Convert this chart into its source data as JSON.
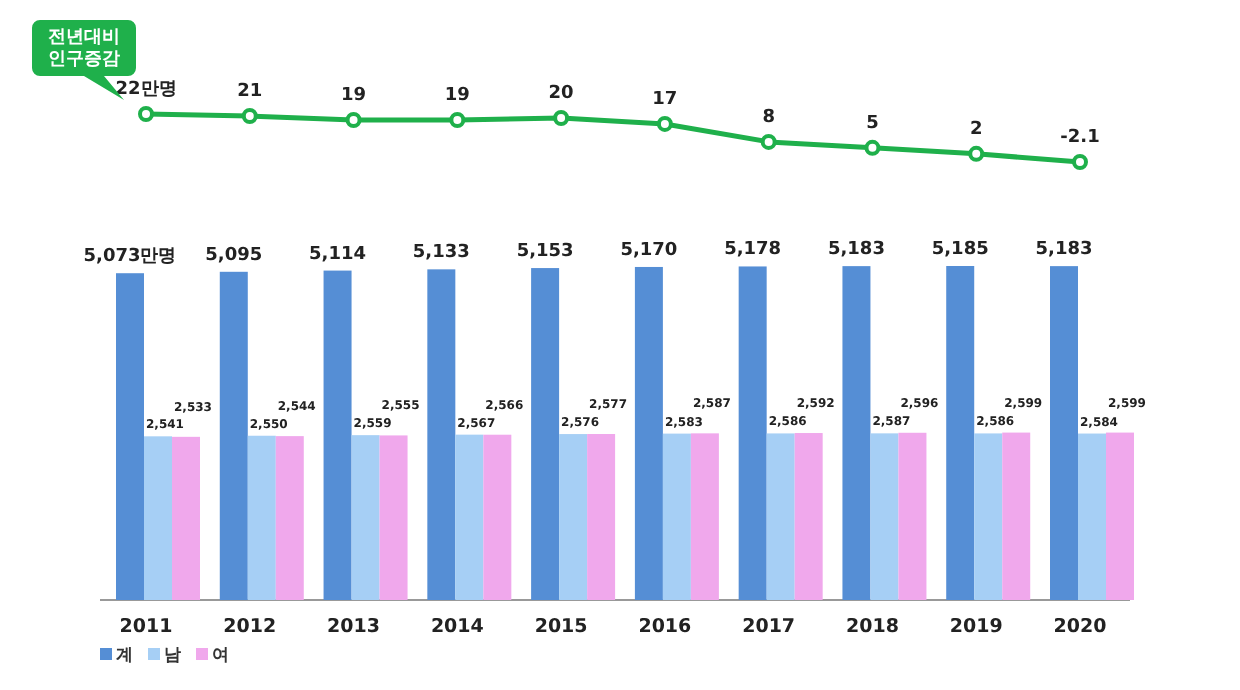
{
  "chart_data": [
    {
      "type": "line",
      "categories": [
        null,
        null,
        null,
        null,
        null,
        null,
        null,
        null,
        null,
        null
      ],
      "marker": "circle",
      "series": [
        {
          "name": "전년대비 인구증감",
          "color": "#1fb04b",
          "values": [
            22,
            21,
            19,
            19,
            20,
            17,
            8,
            5,
            2,
            -2.1
          ],
          "value_labels": [
            "22만명",
            "21",
            "19",
            "19",
            "20",
            "17",
            "8",
            "5",
            "2",
            "-2.1"
          ]
        }
      ]
    },
    {
      "type": "bar",
      "categories": [
        "2011",
        "2012",
        "2013",
        "2014",
        "2015",
        "2016",
        "2017",
        "2018",
        "2019",
        "2020"
      ],
      "legend": "bottom left",
      "series": [
        {
          "name": "계",
          "color": "#558ed5",
          "values": [
            5073,
            5095,
            5114,
            5133,
            5153,
            5170,
            5178,
            5183,
            5185,
            5183
          ],
          "value_labels": [
            "5,073만명",
            "5,095",
            "5,114",
            "5,133",
            "5,153",
            "5,170",
            "5,178",
            "5,183",
            "5,185",
            "5,183"
          ]
        },
        {
          "name": "남",
          "color": "#a6cff5",
          "values": [
            2541,
            2550,
            2559,
            2567,
            2576,
            2583,
            2586,
            2587,
            2586,
            2584
          ],
          "value_labels": [
            "2,541",
            "2,550",
            "2,559",
            "2,567",
            "2,576",
            "2,583",
            "2,586",
            "2,587",
            "2,586",
            "2,584"
          ]
        },
        {
          "name": "여",
          "color": "#f0a8ec",
          "values": [
            2533,
            2544,
            2555,
            2566,
            2577,
            2587,
            2592,
            2596,
            2599,
            2599
          ],
          "value_labels": [
            "2,533",
            "2,544",
            "2,555",
            "2,566",
            "2,577",
            "2,587",
            "2,592",
            "2,596",
            "2,599",
            "2,599"
          ]
        }
      ]
    }
  ]
}
